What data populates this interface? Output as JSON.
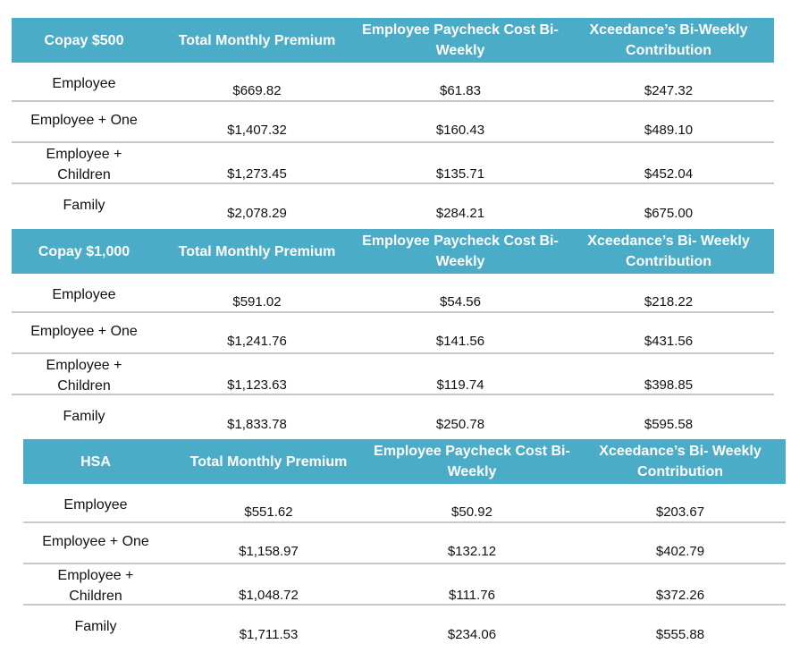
{
  "tables": [
    {
      "plan": "Copay $500",
      "headers": [
        "Total Monthly Premium",
        "Employee Paycheck Cost Bi- Weekly",
        "Xceedance’s Bi-Weekly Contribution"
      ],
      "rows": [
        {
          "tier": "Employee",
          "premium": "$669.82",
          "paycheck": "$61.83",
          "contribution": "$247.32"
        },
        {
          "tier": "Employee + One",
          "premium": "$1,407.32",
          "paycheck": "$160.43",
          "contribution": "$489.10"
        },
        {
          "tier": "Employee + Children",
          "premium": "$1,273.45",
          "paycheck": "$135.71",
          "contribution": "$452.04"
        },
        {
          "tier": "Family",
          "premium": "$2,078.29",
          "paycheck": "$284.21",
          "contribution": "$675.00"
        }
      ]
    },
    {
      "plan": "Copay $1,000",
      "headers": [
        "Total Monthly Premium",
        "Employee Paycheck Cost Bi- Weekly",
        "Xceedance’s Bi- Weekly Contribution"
      ],
      "rows": [
        {
          "tier": "Employee",
          "premium": "$591.02",
          "paycheck": "$54.56",
          "contribution": "$218.22"
        },
        {
          "tier": "Employee + One",
          "premium": "$1,241.76",
          "paycheck": "$141.56",
          "contribution": "$431.56"
        },
        {
          "tier": "Employee + Children",
          "premium": "$1,123.63",
          "paycheck": "$119.74",
          "contribution": "$398.85"
        },
        {
          "tier": "Family",
          "premium": "$1,833.78",
          "paycheck": "$250.78",
          "contribution": "$595.58"
        }
      ]
    },
    {
      "plan": "HSA",
      "headers": [
        "Total Monthly Premium",
        "Employee Paycheck Cost Bi- Weekly",
        "Xceedance’s Bi- Weekly Contribution"
      ],
      "rows": [
        {
          "tier": "Employee",
          "premium": "$551.62",
          "paycheck": "$50.92",
          "contribution": "$203.67"
        },
        {
          "tier": "Employee + One",
          "premium": "$1,158.97",
          "paycheck": "$132.12",
          "contribution": "$402.79"
        },
        {
          "tier": "Employee + Children",
          "premium": "$1,048.72",
          "paycheck": "$111.76",
          "contribution": "$372.26"
        },
        {
          "tier": "Family",
          "premium": "$1,711.53",
          "paycheck": "$234.06",
          "contribution": "$555.88"
        }
      ]
    }
  ],
  "colors": {
    "header_bg": "#4aacc6",
    "header_text": "#ffffff",
    "row_divider": "#c8c8c8"
  }
}
